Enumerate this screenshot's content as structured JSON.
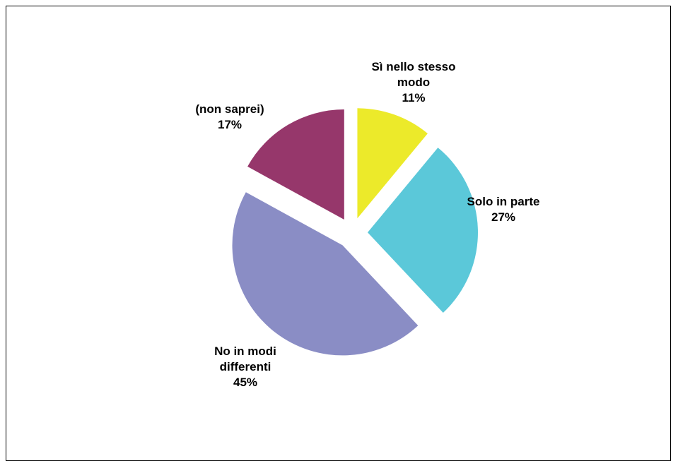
{
  "chart_data": {
    "type": "pie",
    "title": "",
    "start_angle_deg": 90,
    "direction": "clockwise",
    "exploded": true,
    "slices": [
      {
        "name_lines": [
          "Sì nello stesso",
          "modo"
        ],
        "value": 11,
        "value_label": "11%",
        "color": "#ECEA2A"
      },
      {
        "name_lines": [
          "Solo in parte"
        ],
        "value": 27,
        "value_label": "27%",
        "color": "#5BC8D9"
      },
      {
        "name_lines": [
          "No in modi",
          "differenti"
        ],
        "value": 45,
        "value_label": "45%",
        "color": "#8A8DC5"
      },
      {
        "name_lines": [
          "(non saprei)"
        ],
        "value": 17,
        "value_label": "17%",
        "color": "#96376B"
      }
    ]
  }
}
